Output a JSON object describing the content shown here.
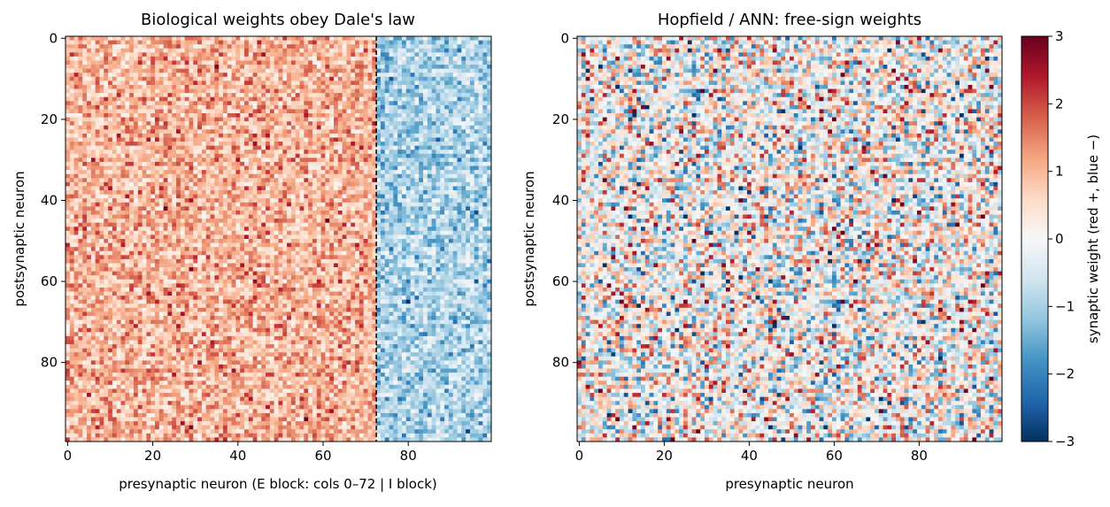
{
  "colors": {
    "colormap": "RdBu_r",
    "neg_extreme": "#053061",
    "neg_mid": "#2166ac",
    "neg_light": "#92c5de",
    "zero": "#f7f7f7",
    "pos_light": "#f4a582",
    "pos_mid": "#b2182b",
    "pos_extreme": "#67001f",
    "divider": "#000000"
  },
  "chart_data": [
    {
      "type": "heatmap",
      "title": "Biological weights obey Dale's law",
      "xlabel": "presynaptic neuron   (E block: cols 0–72  |  I block)",
      "ylabel": "postsynaptic neuron",
      "rows": 100,
      "cols": 100,
      "x_ticks": [
        "0",
        "20",
        "40",
        "60",
        "80"
      ],
      "y_ticks": [
        "0",
        "20",
        "40",
        "60",
        "80"
      ],
      "excitatory_cols": [
        0,
        72
      ],
      "inhibitory_cols": [
        73,
        99
      ],
      "block_divider_at": 72.5,
      "excitatory_weights": "positive, mostly 0.3 to 2.5",
      "inhibitory_weights": "negative, mostly -0.3 to -2.5",
      "vlim": [
        -3,
        3
      ]
    },
    {
      "type": "heatmap",
      "title": "Hopfield / ANN: free-sign weights",
      "xlabel": "presynaptic neuron",
      "ylabel": "postsynaptic neuron",
      "rows": 100,
      "cols": 100,
      "x_ticks": [
        "0",
        "20",
        "40",
        "60",
        "80"
      ],
      "y_ticks": [
        "0",
        "20",
        "40",
        "60",
        "80"
      ],
      "weights": "mixed sign, roughly symmetric around 0",
      "vlim": [
        -3,
        3
      ]
    }
  ],
  "colorbar": {
    "label": "synaptic weight  (red +, blue −)",
    "ticks": [
      "3",
      "2",
      "1",
      "0",
      "−1",
      "−2",
      "−3"
    ],
    "range": [
      -3,
      3
    ]
  }
}
